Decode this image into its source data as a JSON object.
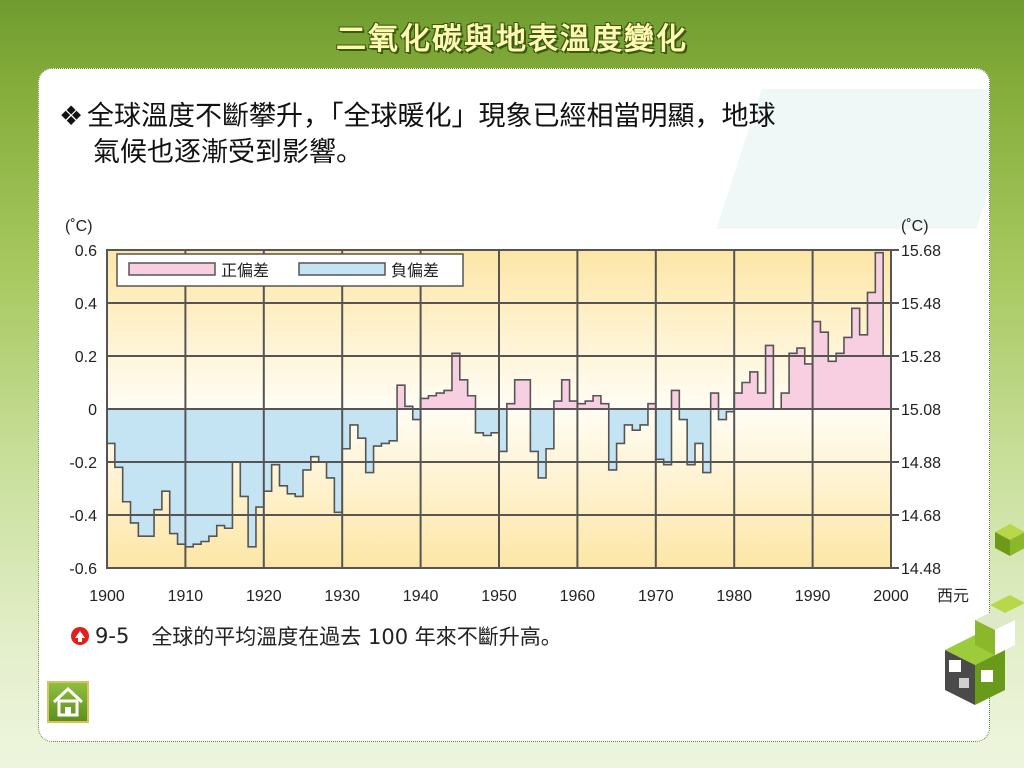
{
  "slide_title": "二氧化碳與地表溫度變化",
  "bullet": {
    "line1": "全球溫度不斷攀升，「全球暖化」現象已經相當明顯，地球",
    "line2": "氣候也逐漸受到影響。"
  },
  "caption": {
    "number": "9-5",
    "text": "全球的平均溫度在過去 100 年來不斷升高。"
  },
  "colors": {
    "positive": "#f8cfe0",
    "negative": "#c4e4f4",
    "grid": "#555555",
    "bg_top": "#fde6a6"
  },
  "chart_data": {
    "type": "bar",
    "left_unit": "(˚C)",
    "right_unit": "(˚C)",
    "x_label": "西元",
    "x_ticks": [
      1900,
      1910,
      1920,
      1930,
      1940,
      1950,
      1960,
      1970,
      1980,
      1990,
      2000
    ],
    "xlim": [
      1900,
      2000
    ],
    "ylim": [
      -0.6,
      0.6
    ],
    "y_ticks_left": [
      "0.6",
      "0.4",
      "0.2",
      "0",
      "-0.2",
      "-0.4",
      "-0.6"
    ],
    "y_ticks_right": [
      "15.68",
      "15.48",
      "15.28",
      "15.08",
      "14.88",
      "14.68",
      "14.48"
    ],
    "legend": [
      {
        "label": "正偏差",
        "color": "#f8cfe0"
      },
      {
        "label": "負偏差",
        "color": "#c4e4f4"
      }
    ],
    "years_start": 1900,
    "anomalies": [
      -0.13,
      -0.22,
      -0.35,
      -0.43,
      -0.48,
      -0.48,
      -0.38,
      -0.31,
      -0.47,
      -0.51,
      -0.52,
      -0.51,
      -0.5,
      -0.48,
      -0.44,
      -0.45,
      -0.2,
      -0.33,
      -0.52,
      -0.37,
      -0.31,
      -0.21,
      -0.29,
      -0.32,
      -0.33,
      -0.23,
      -0.18,
      -0.2,
      -0.26,
      -0.39,
      -0.15,
      -0.06,
      -0.11,
      -0.24,
      -0.14,
      -0.13,
      -0.12,
      0.09,
      0.01,
      -0.04,
      0.04,
      0.05,
      0.06,
      0.07,
      0.21,
      0.11,
      0.05,
      -0.09,
      -0.1,
      -0.09,
      -0.16,
      0.02,
      0.11,
      0.11,
      -0.16,
      -0.26,
      -0.15,
      0.03,
      0.11,
      0.03,
      0.02,
      0.03,
      0.05,
      0.02,
      -0.23,
      -0.13,
      -0.06,
      -0.08,
      -0.06,
      0.02,
      -0.19,
      -0.21,
      0.07,
      -0.04,
      -0.21,
      -0.13,
      -0.24,
      0.06,
      -0.04,
      -0.01,
      0.06,
      0.1,
      0.14,
      0.06,
      0.24,
      0.0,
      0.06,
      0.21,
      0.23,
      0.17,
      0.33,
      0.29,
      0.18,
      0.21,
      0.27,
      0.38,
      0.28,
      0.44,
      0.59,
      0.2
    ]
  }
}
